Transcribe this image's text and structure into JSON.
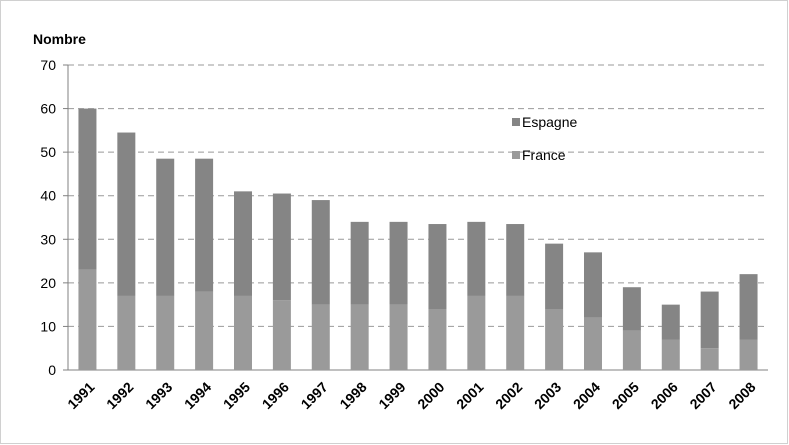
{
  "chart_data": {
    "type": "stacked_bar",
    "title": "Nombre",
    "categories": [
      "1991",
      "1992",
      "1993",
      "1994",
      "1995",
      "1996",
      "1997",
      "1998",
      "1999",
      "2000",
      "2001",
      "2002",
      "2003",
      "2004",
      "2005",
      "2006",
      "2007",
      "2008"
    ],
    "series": [
      {
        "name": "France",
        "color": "#9a9a9a",
        "values": [
          23,
          17,
          17,
          18,
          17,
          16,
          15,
          15,
          15,
          14,
          17,
          17,
          14,
          12,
          9,
          7,
          5,
          7
        ]
      },
      {
        "name": "Espagne",
        "color": "#858585",
        "values": [
          37,
          37.5,
          31.5,
          30.5,
          24,
          24.5,
          24,
          19,
          19,
          19.5,
          17,
          16.5,
          15,
          15,
          10,
          8,
          13,
          15
        ]
      }
    ],
    "ylim": [
      0,
      70
    ],
    "yticks": [
      0,
      10,
      20,
      30,
      40,
      50,
      60,
      70
    ],
    "grid": true,
    "legend": "upper right"
  }
}
